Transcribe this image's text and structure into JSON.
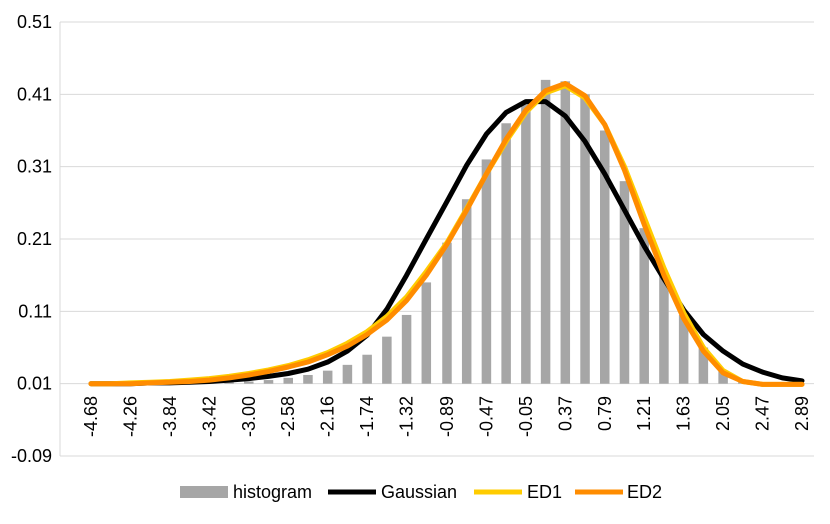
{
  "chart_data": {
    "type": "bar+line",
    "title": "",
    "xlabel": "",
    "ylabel": "",
    "ylim": [
      -0.09,
      0.51
    ],
    "yticks": [
      0.51,
      0.41,
      0.31,
      0.21,
      0.11,
      0.01,
      -0.09
    ],
    "ytick_labels": [
      "0.51",
      "0.41",
      "0.31",
      "0.21",
      "0.11",
      "0.01",
      "-0.09"
    ],
    "xtick_labels": [
      "-4.68",
      "-4.26",
      "-3.84",
      "-3.42",
      "-3.00",
      "-2.58",
      "-2.16",
      "-1.74",
      "-1.32",
      "-0.89",
      "-0.47",
      "-0.05",
      "0.37",
      "0.79",
      "1.21",
      "1.63",
      "2.05",
      "2.47",
      "2.89"
    ],
    "gridlines": true,
    "legend_position": "bottom",
    "x": [
      -4.68,
      -4.47,
      -4.26,
      -4.05,
      -3.84,
      -3.63,
      -3.42,
      -3.21,
      -3.0,
      -2.79,
      -2.58,
      -2.37,
      -2.16,
      -1.95,
      -1.74,
      -1.53,
      -1.32,
      -1.11,
      -0.89,
      -0.68,
      -0.47,
      -0.26,
      -0.05,
      0.16,
      0.37,
      0.58,
      0.79,
      1.0,
      1.21,
      1.42,
      1.63,
      1.84,
      2.05,
      2.26,
      2.47,
      2.68,
      2.89
    ],
    "series": [
      {
        "name": "histogram",
        "kind": "bar",
        "color": "#a6a6a6",
        "values": [
          0.01,
          0.01,
          0.01,
          0.01,
          0.01,
          0.011,
          0.011,
          0.012,
          0.013,
          0.015,
          0.018,
          0.022,
          0.028,
          0.036,
          0.05,
          0.075,
          0.105,
          0.15,
          0.205,
          0.265,
          0.32,
          0.37,
          0.4,
          0.43,
          0.428,
          0.41,
          0.36,
          0.29,
          0.225,
          0.16,
          0.105,
          0.06,
          0.028,
          0.012,
          0.01,
          0.01,
          0.01
        ]
      },
      {
        "name": "Gaussian",
        "kind": "line",
        "color": "#000000",
        "values": [
          0.01,
          0.01,
          0.01,
          0.011,
          0.011,
          0.012,
          0.013,
          0.015,
          0.017,
          0.02,
          0.024,
          0.03,
          0.04,
          0.055,
          0.077,
          0.113,
          0.16,
          0.21,
          0.262,
          0.312,
          0.355,
          0.385,
          0.4,
          0.4,
          0.38,
          0.345,
          0.3,
          0.25,
          0.2,
          0.155,
          0.112,
          0.078,
          0.055,
          0.037,
          0.026,
          0.018,
          0.014
        ]
      },
      {
        "name": "ED1",
        "kind": "line",
        "color": "#ffcc00",
        "values": [
          0.01,
          0.01,
          0.011,
          0.012,
          0.013,
          0.015,
          0.017,
          0.02,
          0.024,
          0.029,
          0.035,
          0.043,
          0.053,
          0.066,
          0.082,
          0.103,
          0.13,
          0.165,
          0.205,
          0.252,
          0.3,
          0.345,
          0.385,
          0.412,
          0.422,
          0.405,
          0.368,
          0.31,
          0.24,
          0.17,
          0.108,
          0.06,
          0.028,
          0.013,
          0.009,
          0.009,
          0.009
        ]
      },
      {
        "name": "ED2",
        "kind": "line",
        "color": "#ff8c00",
        "values": [
          0.01,
          0.01,
          0.01,
          0.011,
          0.012,
          0.013,
          0.015,
          0.018,
          0.022,
          0.027,
          0.033,
          0.04,
          0.05,
          0.062,
          0.078,
          0.098,
          0.125,
          0.16,
          0.203,
          0.25,
          0.3,
          0.348,
          0.388,
          0.415,
          0.425,
          0.408,
          0.368,
          0.305,
          0.23,
          0.16,
          0.1,
          0.055,
          0.025,
          0.013,
          0.009,
          0.009,
          0.009
        ]
      }
    ]
  }
}
